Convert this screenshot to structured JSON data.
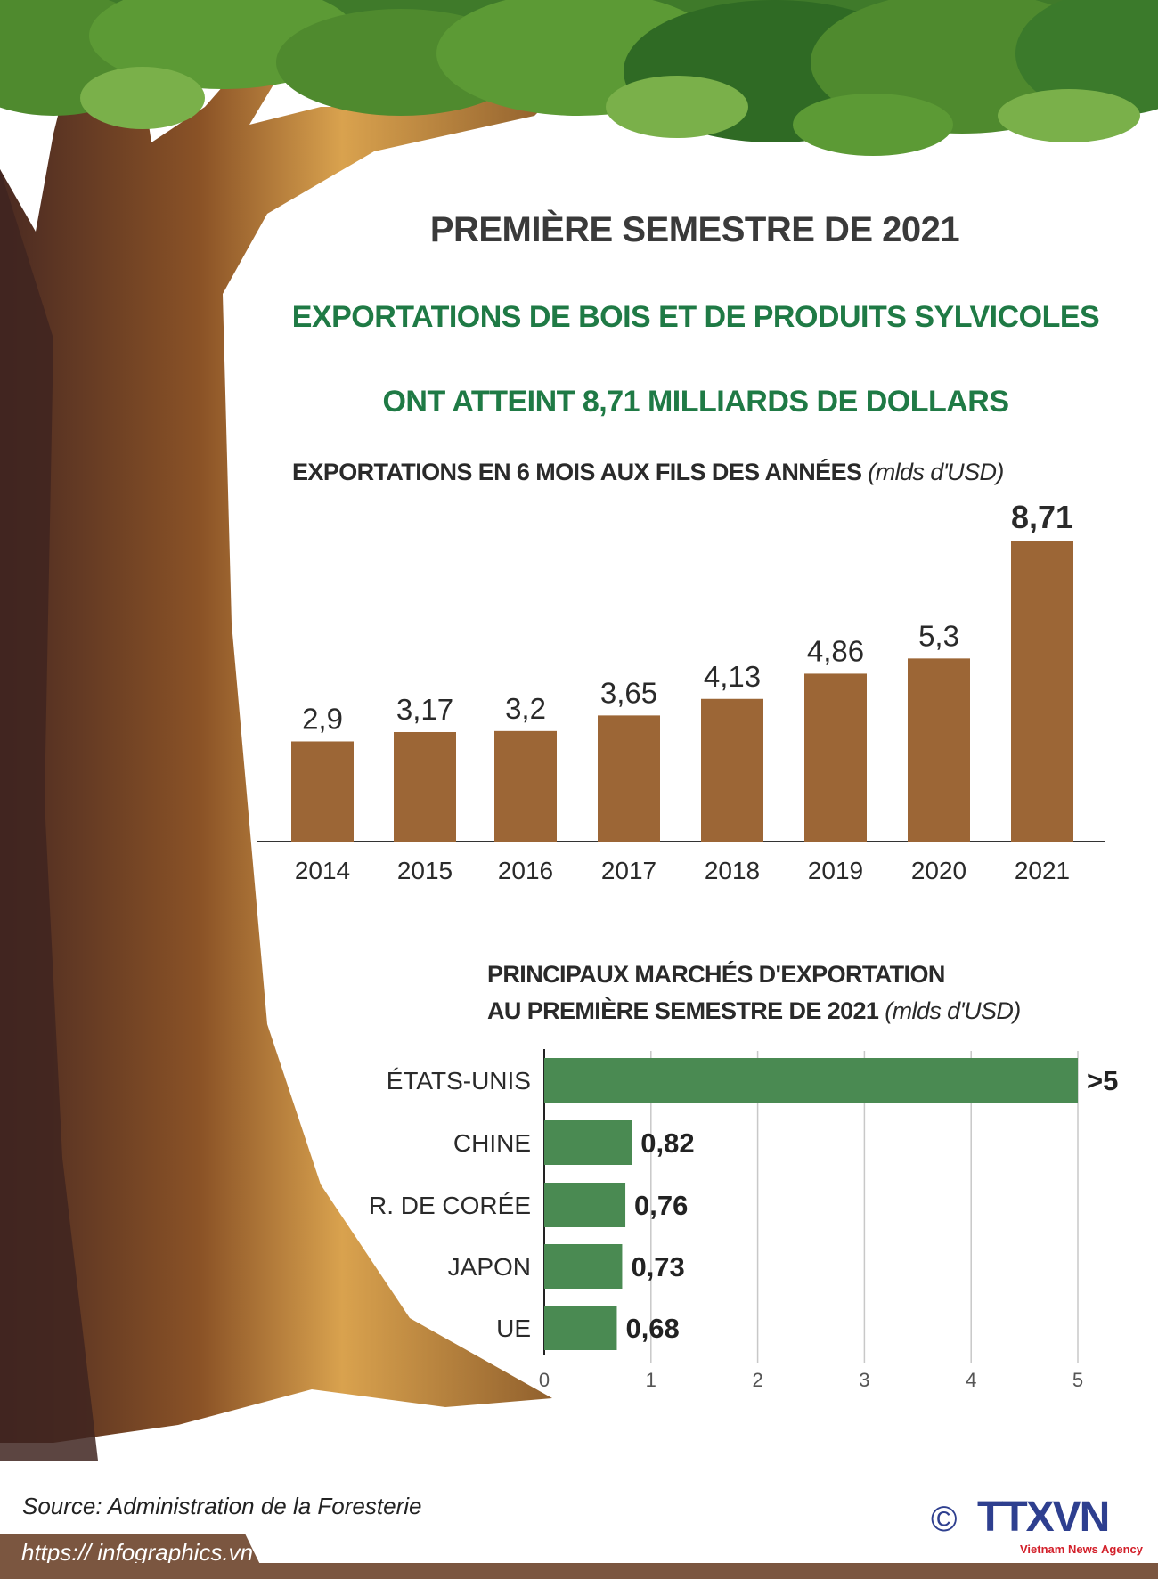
{
  "header": {
    "title": "PREMIÈRE SEMESTRE DE 2021",
    "headline_line1": "EXPORTATIONS DE BOIS ET DE  PRODUITS SYLVICOLES",
    "headline_line2": "ONT ATTEINT 8,71 MILLIARDS DE DOLLARS"
  },
  "chart_data": [
    {
      "type": "bar",
      "title": "EXPORTATIONS EN  6 MOIS AUX FILS DES ANNÉES",
      "unit": "(mlds d'USD)",
      "categories": [
        "2014",
        "2015",
        "2016",
        "2017",
        "2018",
        "2019",
        "2020",
        "2021"
      ],
      "values": [
        2.9,
        3.17,
        3.2,
        3.65,
        4.13,
        4.86,
        5.3,
        8.71
      ],
      "data_labels": [
        "2,9",
        "3,17",
        "3,2",
        "3,65",
        "4,13",
        "4,86",
        "5,3",
        "8,71"
      ],
      "bar_color": "#9c6636",
      "grid": false
    },
    {
      "type": "bar",
      "orientation": "horizontal",
      "title_line1": "PRINCIPAUX MARCHÉS D'EXPORTATION",
      "title_line2": "AU PREMIÈRE SEMESTRE DE 2021",
      "unit": "(mlds d'USD)",
      "categories": [
        "ÉTATS-UNIS",
        "CHINE",
        "R. DE CORÉE",
        "JAPON",
        "UE"
      ],
      "values": [
        5,
        0.82,
        0.76,
        0.73,
        0.68
      ],
      "data_labels": [
        ">5",
        "0,82",
        "0,76",
        "0,73",
        "0,68"
      ],
      "xlim": [
        0,
        5
      ],
      "xticks": [
        "0",
        "1",
        "2",
        "3",
        "4",
        "5"
      ],
      "bar_color": "#4a8a52",
      "grid": true
    }
  ],
  "footer": {
    "source": "Source: Administration de la Foresterie",
    "url": "https:// infographics.vn",
    "copyright_symbol": "©",
    "logo_text": "TTXVN",
    "logo_subtext": "Vietnam News Agency"
  },
  "colors": {
    "title_green": "#1f7a45",
    "bar_brown": "#9c6636",
    "bar_green": "#4a8a52",
    "footer_brown": "#7b5640",
    "logo_blue": "#2e3f8f",
    "logo_red": "#d3202a"
  }
}
